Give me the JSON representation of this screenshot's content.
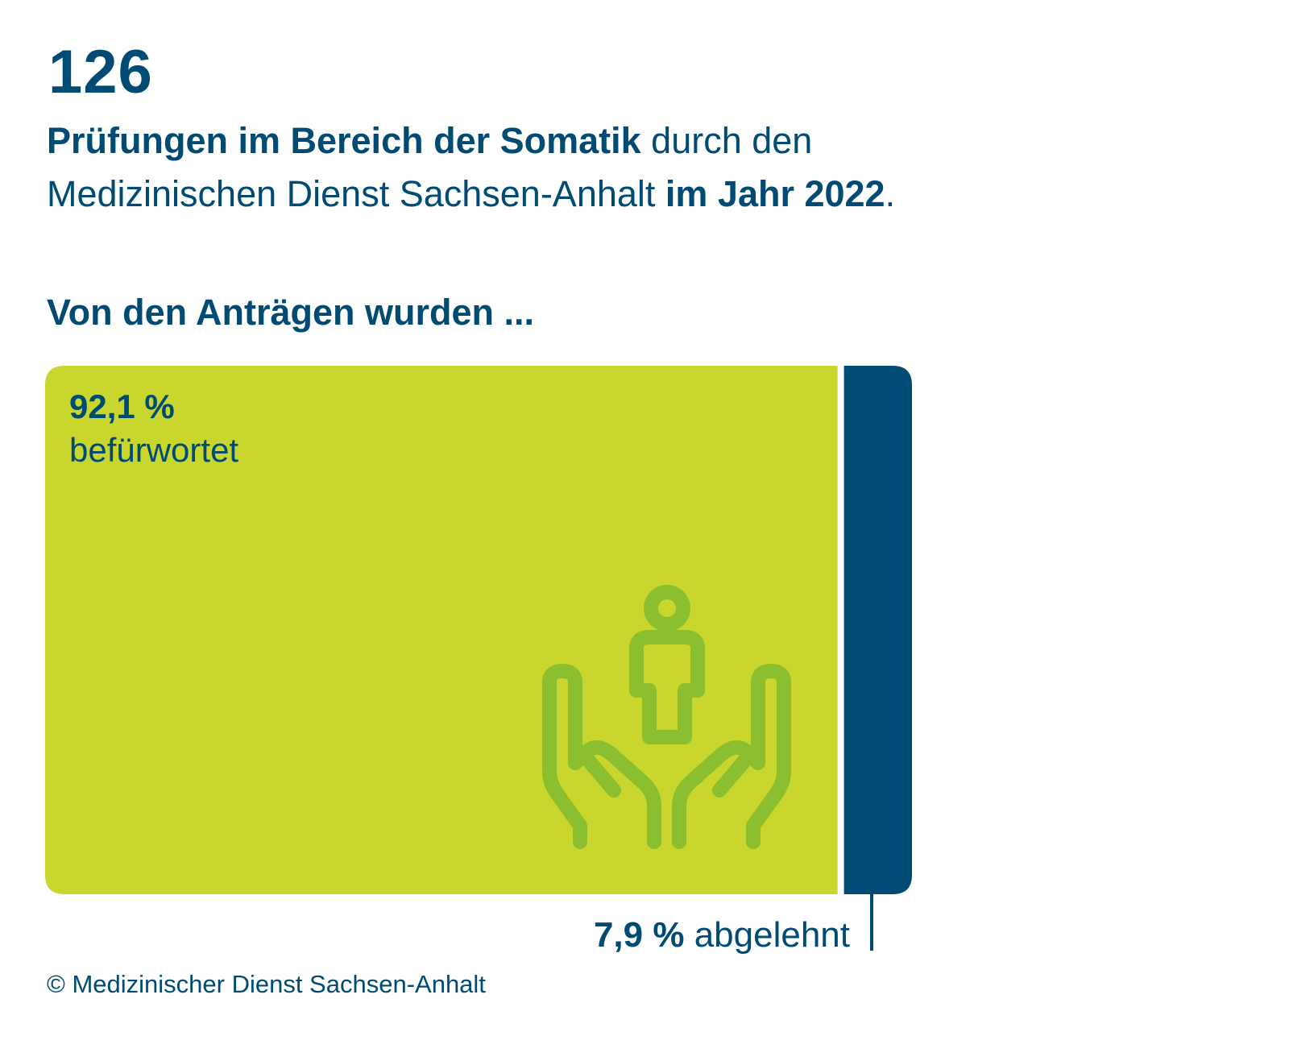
{
  "headline": {
    "number": "126",
    "line_bold": "Prüfungen im Bereich der Somatik",
    "line_mid": " durch den Medizinischen Dienst Sachsen-Anhalt ",
    "line_bold2": "im Jahr 2022",
    "line_end": "."
  },
  "question": "Von den Anträgen wurden ...",
  "chart_data": {
    "type": "bar",
    "orientation": "horizontal-stacked",
    "categories": [
      "befürwortet",
      "abgelehnt"
    ],
    "values": [
      92.1,
      7.9
    ],
    "unit": "%",
    "labels": {
      "approved_value": "92,1 %",
      "approved_label": "befürwortet",
      "rejected_value": "7,9 %",
      "rejected_label": " abgelehnt"
    },
    "colors": {
      "approved": "#c8d62d",
      "rejected": "#004b73",
      "icon": "#8cbf2f"
    },
    "icon": "hands-holding-person-icon"
  },
  "copyright": "© Medizinischer Dienst Sachsen-Anhalt"
}
